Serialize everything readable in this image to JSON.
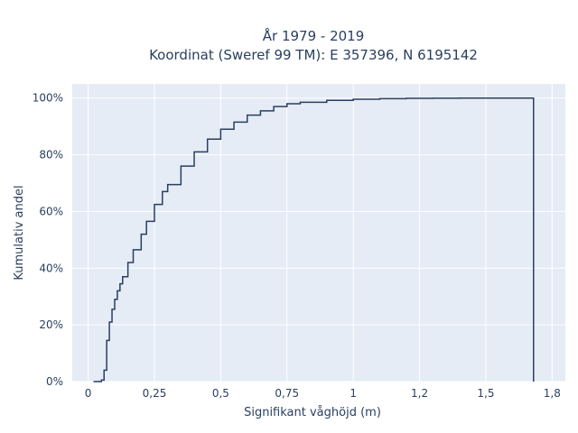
{
  "chart_data": {
    "type": "line",
    "title_line1": "År 1979 - 2019",
    "title_line2": "Koordinat (Sweref 99 TM): E 357396, N 6195142",
    "xlabel": "Signifikant våghöjd (m)",
    "ylabel": "Kumulativ andel",
    "xlim": [
      -0.06,
      1.8
    ],
    "ylim": [
      0,
      1.05
    ],
    "x_ticks": [
      {
        "value": 0,
        "label": "0"
      },
      {
        "value": 0.25,
        "label": "0,25"
      },
      {
        "value": 0.5,
        "label": "0,5"
      },
      {
        "value": 0.75,
        "label": "0,75"
      },
      {
        "value": 1,
        "label": "1"
      },
      {
        "value": 1.25,
        "label": "1,2"
      },
      {
        "value": 1.5,
        "label": "1,5"
      },
      {
        "value": 1.75,
        "label": "1,8"
      }
    ],
    "y_ticks": [
      {
        "value": 0,
        "label": "0%"
      },
      {
        "value": 0.2,
        "label": "20%"
      },
      {
        "value": 0.4,
        "label": "40%"
      },
      {
        "value": 0.6,
        "label": "60%"
      },
      {
        "value": 0.8,
        "label": "80%"
      },
      {
        "value": 1.0,
        "label": "100%"
      }
    ],
    "grid": true,
    "series": [
      {
        "line_color": "#2a3f5f",
        "step": true,
        "x": [
          0.02,
          0.05,
          0.06,
          0.07,
          0.08,
          0.09,
          0.1,
          0.11,
          0.12,
          0.13,
          0.15,
          0.17,
          0.2,
          0.22,
          0.25,
          0.28,
          0.3,
          0.35,
          0.4,
          0.45,
          0.5,
          0.55,
          0.6,
          0.65,
          0.7,
          0.75,
          0.8,
          0.9,
          1.0,
          1.1,
          1.2,
          1.3,
          1.4,
          1.5,
          1.6,
          1.68,
          1.68
        ],
        "y": [
          0.0,
          0.005,
          0.04,
          0.145,
          0.21,
          0.255,
          0.29,
          0.32,
          0.345,
          0.37,
          0.42,
          0.465,
          0.52,
          0.565,
          0.625,
          0.67,
          0.695,
          0.76,
          0.81,
          0.855,
          0.89,
          0.915,
          0.94,
          0.955,
          0.97,
          0.98,
          0.985,
          0.992,
          0.996,
          0.998,
          0.999,
          0.9995,
          1.0,
          1.0,
          1.0,
          1.0,
          0.0
        ]
      }
    ]
  }
}
